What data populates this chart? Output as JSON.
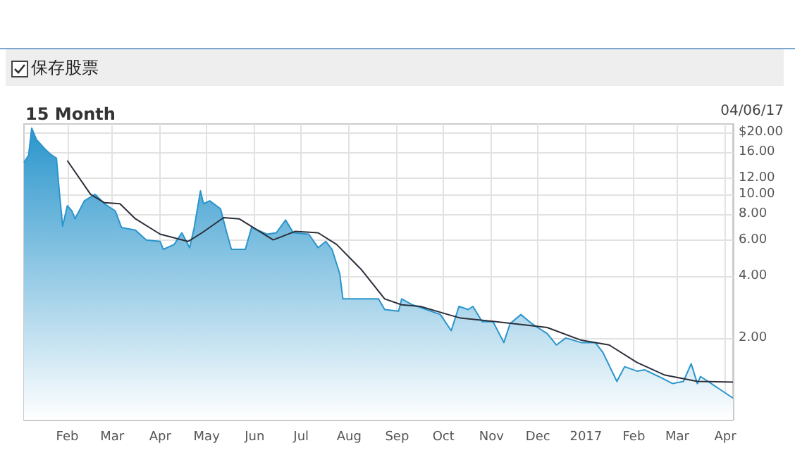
{
  "chart_data": {
    "type": "area",
    "title": "15 Month",
    "annotations": [
      "保存股票",
      "04/06/17"
    ],
    "xlim": [
      "2016-01-04",
      "2017-04-06"
    ],
    "xticks": [
      {
        "value": "2016-02",
        "label": "Feb"
      },
      {
        "value": "2016-03",
        "label": "Mar"
      },
      {
        "value": "2016-04",
        "label": "Apr"
      },
      {
        "value": "2016-05",
        "label": "May"
      },
      {
        "value": "2016-06",
        "label": "Jun"
      },
      {
        "value": "2016-07",
        "label": "Jul"
      },
      {
        "value": "2016-08",
        "label": "Aug"
      },
      {
        "value": "2016-09",
        "label": "Sep"
      },
      {
        "value": "2016-10",
        "label": "Oct"
      },
      {
        "value": "2016-11",
        "label": "Nov"
      },
      {
        "value": "2016-12",
        "label": "Dec"
      },
      {
        "value": "2017-01",
        "label": "2017"
      },
      {
        "value": "2017-02",
        "label": "Feb"
      },
      {
        "value": "2017-03",
        "label": "Mar"
      },
      {
        "value": "2017-04",
        "label": "Apr"
      }
    ],
    "ylim": [
      0.8,
      22
    ],
    "log": "y",
    "yticks": [
      {
        "value": 2,
        "label": "2.00"
      },
      {
        "value": 4,
        "label": "4.00"
      },
      {
        "value": 6,
        "label": "6.00"
      },
      {
        "value": 8,
        "label": "8.00"
      },
      {
        "value": 10,
        "label": "10.00"
      },
      {
        "value": 12,
        "label": "12.00"
      },
      {
        "value": 16,
        "label": "16.00"
      },
      {
        "value": 20,
        "label": "$20.00"
      }
    ],
    "grid": true,
    "marker": "none",
    "line_style": "solid",
    "series": [
      {
        "color": "#2a95cc",
        "x": [
          "2016-01-04",
          "2016-01-07",
          "2016-01-09",
          "2016-01-12",
          "2016-01-17",
          "2016-01-21",
          "2016-01-25",
          "2016-01-27",
          "2016-01-29",
          "2016-02-01",
          "2016-02-04",
          "2016-02-06",
          "2016-02-12",
          "2016-02-19",
          "2016-02-25",
          "2016-03-03",
          "2016-03-07",
          "2016-03-16",
          "2016-03-23",
          "2016-04-01",
          "2016-04-03",
          "2016-04-10",
          "2016-04-15",
          "2016-04-20",
          "2016-04-23",
          "2016-04-27",
          "2016-04-29",
          "2016-05-03",
          "2016-05-10",
          "2016-05-14",
          "2016-05-17",
          "2016-05-26",
          "2016-05-30",
          "2016-06-09",
          "2016-06-15",
          "2016-06-21",
          "2016-06-26",
          "2016-07-06",
          "2016-07-12",
          "2016-07-17",
          "2016-07-21",
          "2016-07-26",
          "2016-07-28",
          "2016-08-11",
          "2016-08-20",
          "2016-08-24",
          "2016-09-02",
          "2016-09-04",
          "2016-09-11",
          "2016-09-20",
          "2016-09-29",
          "2016-10-06",
          "2016-10-11",
          "2016-10-17",
          "2016-10-20",
          "2016-10-26",
          "2016-11-02",
          "2016-11-09",
          "2016-11-13",
          "2016-11-20",
          "2016-11-27",
          "2016-12-07",
          "2016-12-13",
          "2016-12-19",
          "2016-12-29",
          "2017-01-07",
          "2017-01-12",
          "2017-01-21",
          "2017-01-26",
          "2017-02-03",
          "2017-02-08",
          "2017-02-17",
          "2017-02-26",
          "2017-03-05",
          "2017-03-10",
          "2017-03-14",
          "2017-03-16",
          "2017-03-23",
          "2017-04-06"
        ],
        "values": [
          14.3,
          15.5,
          21,
          18.5,
          16.8,
          15.7,
          15,
          10,
          7,
          8.8,
          8.3,
          7.6,
          9.3,
          10,
          9,
          8.3,
          6.9,
          6.7,
          6,
          5.9,
          5.4,
          5.7,
          6.5,
          5.5,
          6.9,
          10.4,
          9,
          9.3,
          8.5,
          6.5,
          5.4,
          5.4,
          6.9,
          6.4,
          6.5,
          7.5,
          6.5,
          6.4,
          5.5,
          5.9,
          5.4,
          4.1,
          3.1,
          3.1,
          3.1,
          2.75,
          2.7,
          3.1,
          2.9,
          2.75,
          2.6,
          2.17,
          2.85,
          2.75,
          2.85,
          2.4,
          2.4,
          1.9,
          2.35,
          2.6,
          2.35,
          2.1,
          1.85,
          2,
          1.9,
          1.9,
          1.7,
          1.23,
          1.45,
          1.38,
          1.4,
          1.3,
          1.2,
          1.23,
          1.5,
          1.2,
          1.3,
          1.2,
          1.02
        ]
      },
      {
        "type": "line",
        "color": "#2b2f3a",
        "x": [
          "2016-02-01",
          "2016-02-16",
          "2016-02-25",
          "2016-03-06",
          "2016-03-16",
          "2016-04-01",
          "2016-04-19",
          "2016-04-28",
          "2016-05-12",
          "2016-05-22",
          "2016-05-31",
          "2016-06-13",
          "2016-06-27",
          "2016-07-12",
          "2016-07-24",
          "2016-08-09",
          "2016-08-24",
          "2016-09-04",
          "2016-09-16",
          "2016-10-04",
          "2016-10-12",
          "2016-11-04",
          "2016-12-07",
          "2016-12-29",
          "2017-01-16",
          "2017-02-03",
          "2017-02-21",
          "2017-03-14",
          "2017-04-06"
        ],
        "values": [
          14.6,
          10,
          9.1,
          9,
          7.6,
          6.4,
          5.9,
          6.5,
          7.7,
          7.6,
          6.9,
          6,
          6.6,
          6.5,
          5.7,
          4.3,
          3.1,
          2.9,
          2.85,
          2.6,
          2.5,
          2.4,
          2.25,
          1.95,
          1.85,
          1.52,
          1.32,
          1.23,
          1.22
        ]
      }
    ]
  }
}
